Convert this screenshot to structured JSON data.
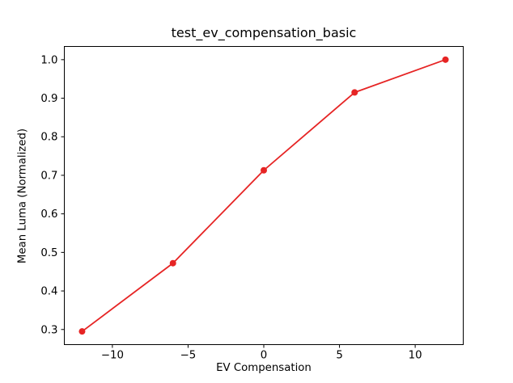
{
  "chart_data": {
    "type": "line",
    "title": "test_ev_compensation_basic",
    "xlabel": "EV Compensation",
    "ylabel": "Mean Luma (Normalized)",
    "x": [
      -12,
      -6,
      0,
      6,
      12
    ],
    "y": [
      0.295,
      0.472,
      0.713,
      0.915,
      1.0
    ],
    "xlim": [
      -13.2,
      13.2
    ],
    "ylim": [
      0.2597,
      1.0353
    ],
    "xticks": {
      "values": [
        -10,
        -5,
        0,
        5,
        10
      ],
      "labels": [
        "−10",
        "−5",
        "0",
        "5",
        "10"
      ]
    },
    "yticks": {
      "values": [
        0.3,
        0.4,
        0.5,
        0.6,
        0.7,
        0.8,
        0.9,
        1.0
      ],
      "labels": [
        "0.3",
        "0.4",
        "0.5",
        "0.6",
        "0.7",
        "0.8",
        "0.9",
        "1.0"
      ]
    },
    "line_color": "#e62424",
    "marker": "o",
    "grid": false,
    "legend": "none",
    "background_color": "#ffffff",
    "spine_color": "#000000"
  }
}
